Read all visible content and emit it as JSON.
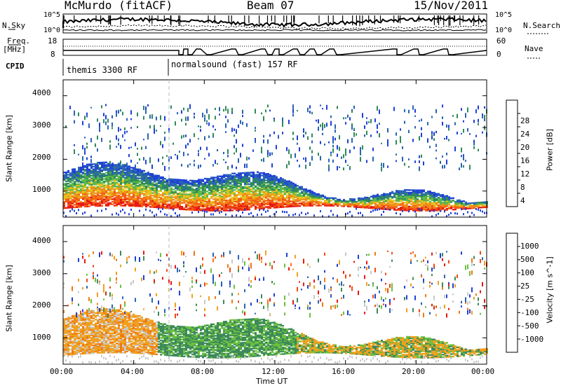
{
  "header": {
    "station": "McMurdo (fitACF)",
    "beam": "Beam 07",
    "date": "15/Nov/2011"
  },
  "top_panel": {
    "left_label_sky": "N.Sky",
    "left_ticks": [
      "10^5",
      "10^0"
    ],
    "right_ticks": [
      "10^5",
      "10^0"
    ],
    "right_label": "N.Search",
    "freq_label_1": "Freq.",
    "freq_label_2": "[MHz]",
    "freq_ticks": [
      "18",
      "8"
    ],
    "nave_ticks": [
      "60",
      "0"
    ],
    "nave_label": "Nave",
    "cpid_label": "CPID",
    "cpid_1": "themis 3300 RF",
    "cpid_2": "normalsound (fast) 157 RF"
  },
  "chart_data": [
    {
      "type": "heatmap",
      "title": "",
      "ylabel": "Slant Range [km]",
      "xlabel": "",
      "ylim": [
        180,
        4500
      ],
      "yticks": [
        "1000",
        "2000",
        "3000",
        "4000"
      ],
      "colorbar_label": "Power [dB]",
      "colorbar_ticks": [
        "4",
        "8",
        "12",
        "16",
        "20",
        "24",
        "28"
      ],
      "colorbar_colors": [
        "#2040d8",
        "#2a64b4",
        "#2f8a5a",
        "#5cb84a",
        "#e6c21c",
        "#f08c1a",
        "#f45a14",
        "#e61a14"
      ]
    },
    {
      "type": "heatmap",
      "title": "",
      "ylabel": "Slant Range [km]",
      "xlabel": "Time UT",
      "ylim": [
        180,
        4500
      ],
      "yticks": [
        "1000",
        "2000",
        "3000",
        "4000"
      ],
      "xticks": [
        "00:00",
        "04:00",
        "08:00",
        "12:00",
        "16:00",
        "20:00",
        "00:00"
      ],
      "colorbar_label": "Velocity [m s^-1]",
      "colorbar_ticks": [
        "1000",
        "500",
        "100",
        "25",
        "-25",
        "-100",
        "-500",
        "-1000"
      ],
      "colorbar_colors": [
        "#2040d8",
        "#2a64b4",
        "#3c8a5a",
        "#6cc040",
        "#c8c8c8",
        "#f0a01e",
        "#f07814",
        "#f04a14",
        "#e61a14"
      ]
    }
  ]
}
